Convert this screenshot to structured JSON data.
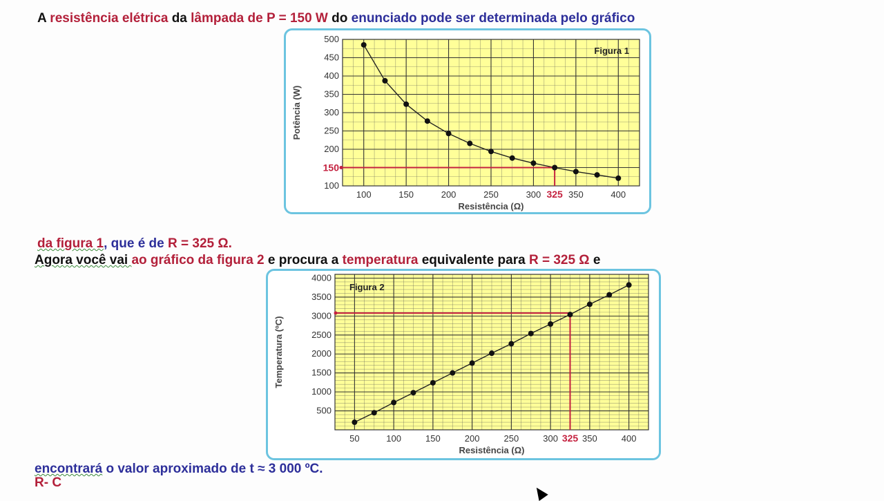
{
  "text": {
    "line1": [
      {
        "t": "A ",
        "c": "black"
      },
      {
        "t": "resistência elétrica",
        "c": "red"
      },
      {
        "t": " da ",
        "c": "black"
      },
      {
        "t": "lâmpada de P = 150 W",
        "c": "red"
      },
      {
        "t": " do ",
        "c": "black"
      },
      {
        "t": "enunciado pode ser determinada pelo gráfico",
        "c": "blue"
      }
    ],
    "line2": [
      {
        "t": "da figura 1",
        "c": "red",
        "squig": true
      },
      {
        "t": ", que é de ",
        "c": "blue"
      },
      {
        "t": "R = 325 Ω.",
        "c": "red"
      }
    ],
    "line3": [
      {
        "t": "Agora você vai ",
        "c": "black",
        "squig": true
      },
      {
        "t": "ao gráfico da figura 2",
        "c": "red"
      },
      {
        "t": " e procura a ",
        "c": "black"
      },
      {
        "t": "temperatura",
        "c": "red"
      },
      {
        "t": " equivalente para ",
        "c": "black"
      },
      {
        "t": "R = 325 Ω",
        "c": "red"
      },
      {
        "t": " e",
        "c": "black"
      }
    ],
    "line4": [
      {
        "t": "encontrará",
        "c": "blue",
        "squig": true
      },
      {
        "t": " o valor aproximado de t ≈ 3 000 ºC.",
        "c": "blue"
      }
    ],
    "line5": [
      {
        "t": "R- C",
        "c": "red"
      }
    ]
  },
  "colors": {
    "black": "#111111",
    "red": "#b3203a",
    "blue": "#2d2f9a",
    "frame": "#6cc4e0",
    "plot_bg": "#ffff99",
    "grid": "#555555",
    "reference": "#c4213f"
  },
  "chart_data": [
    {
      "type": "line",
      "label": "Figura 1",
      "xlabel": "Resistência (Ω)",
      "ylabel": "Potência (W)",
      "xlim": [
        75,
        425
      ],
      "ylim": [
        100,
        500
      ],
      "xticks": [
        100,
        150,
        200,
        250,
        300,
        350,
        400
      ],
      "yticks": [
        100,
        150,
        200,
        250,
        300,
        350,
        400,
        450,
        500
      ],
      "x": [
        100,
        125,
        150,
        175,
        200,
        225,
        250,
        275,
        300,
        325,
        350,
        375,
        400
      ],
      "y": [
        485,
        387,
        323,
        277,
        243,
        216,
        194,
        176,
        162,
        150,
        139,
        130,
        121
      ],
      "reference": {
        "x": 325,
        "y": 150,
        "x_label": "325",
        "y_label": "150"
      },
      "grid": true
    },
    {
      "type": "line",
      "label": "Figura 2",
      "xlabel": "Resistência (Ω)",
      "ylabel": "Temperatura (ºC)",
      "xlim": [
        25,
        425
      ],
      "ylim": [
        0,
        4100
      ],
      "xticks": [
        50,
        100,
        150,
        200,
        250,
        300,
        350,
        400
      ],
      "yticks": [
        500,
        1000,
        1500,
        2000,
        2500,
        3000,
        3500,
        4000
      ],
      "x": [
        50,
        75,
        100,
        125,
        150,
        175,
        200,
        225,
        250,
        275,
        300,
        325,
        350,
        375,
        400
      ],
      "y": [
        200,
        450,
        720,
        980,
        1240,
        1500,
        1760,
        2020,
        2270,
        2540,
        2790,
        3040,
        3310,
        3560,
        3820
      ],
      "reference": {
        "x": 325,
        "y": 3080,
        "x_label": "325"
      },
      "grid": true
    }
  ]
}
